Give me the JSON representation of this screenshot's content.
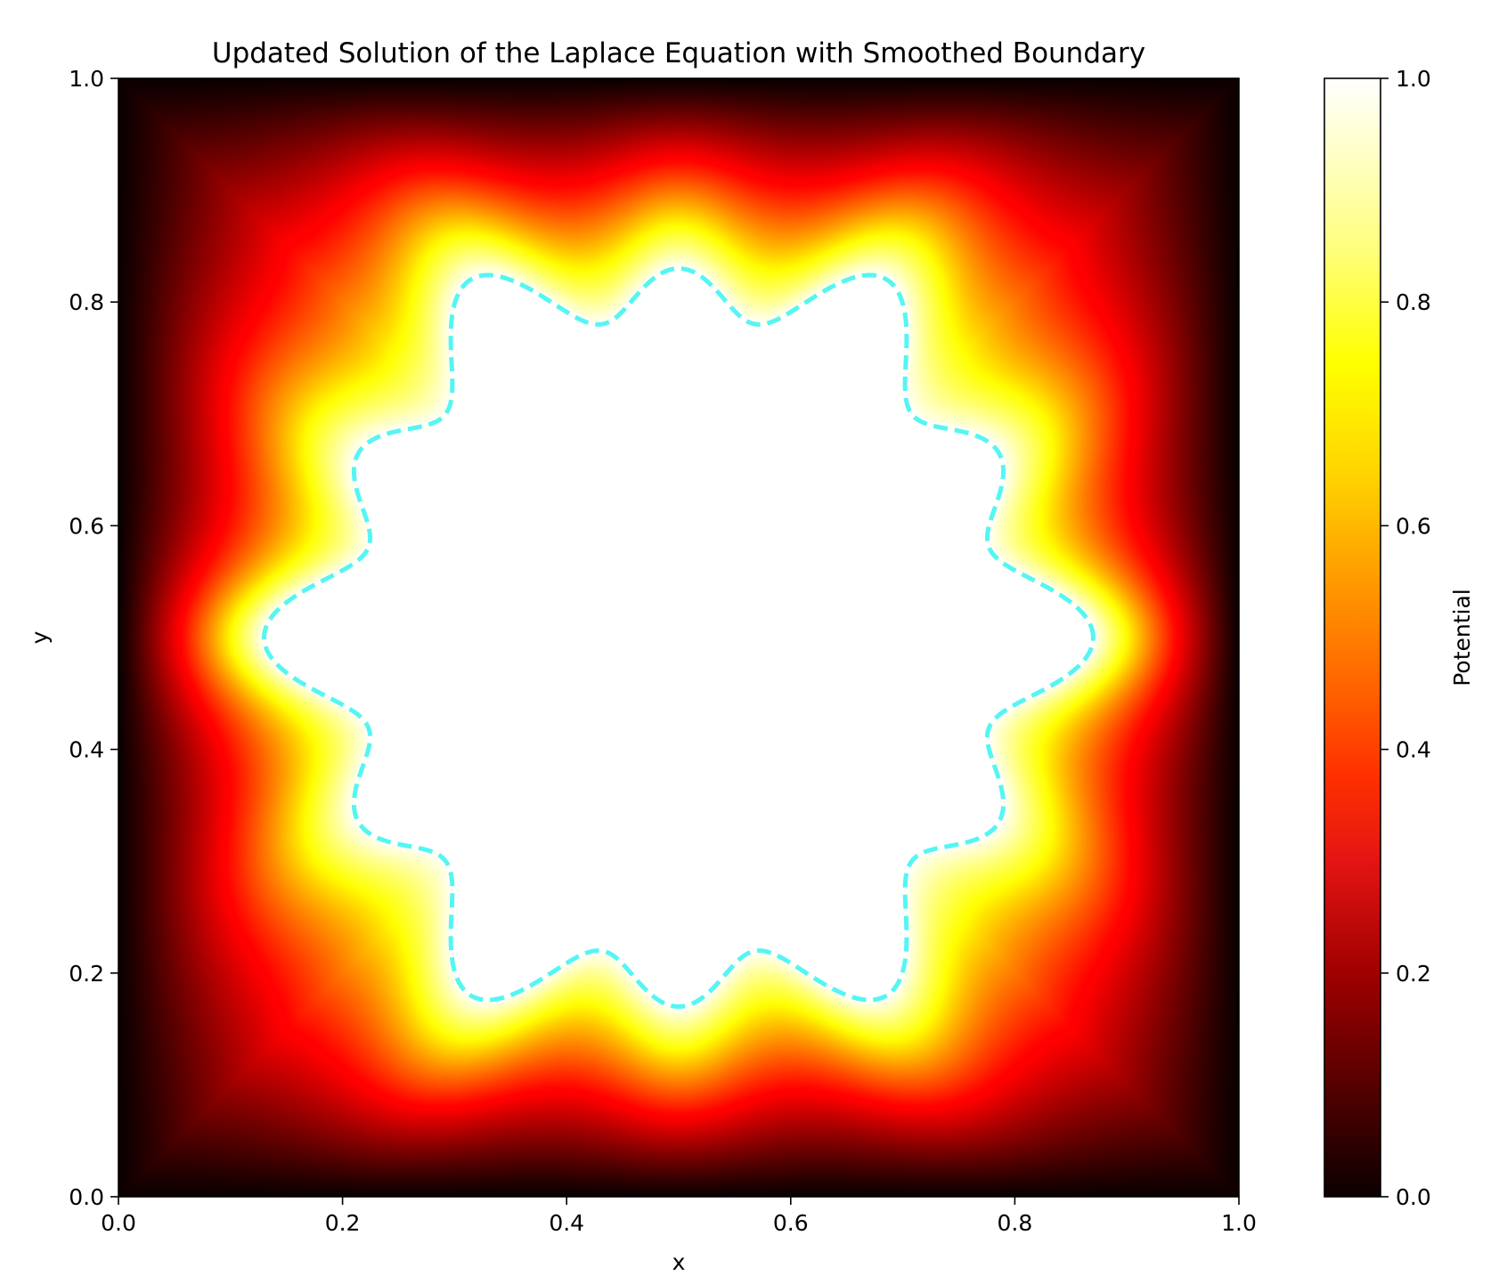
{
  "chart_data": {
    "type": "heatmap",
    "title": "Updated Solution of the Laplace Equation with Smoothed Boundary",
    "xlabel": "x",
    "ylabel": "y",
    "xlim": [
      0.0,
      1.0
    ],
    "ylim": [
      0.0,
      1.0
    ],
    "x_ticks": [
      "0.0",
      "0.2",
      "0.4",
      "0.6",
      "0.8",
      "1.0"
    ],
    "y_ticks": [
      "0.0",
      "0.2",
      "0.4",
      "0.6",
      "0.8",
      "1.0"
    ],
    "colormap": "hot",
    "colorbar": {
      "label": "Potential",
      "range": [
        0.0,
        1.0
      ],
      "ticks": [
        "0.0",
        "0.2",
        "0.4",
        "0.6",
        "0.8",
        "1.0"
      ]
    },
    "boundary": {
      "style": "dashed",
      "color": "#55f5f5",
      "center": [
        0.5,
        0.5
      ],
      "base_radius": 0.32,
      "lobes": 6,
      "lobe_amplitude": 0.02,
      "secondary_harmonic": 12,
      "secondary_amplitude": 0.03
    },
    "grid": false
  }
}
